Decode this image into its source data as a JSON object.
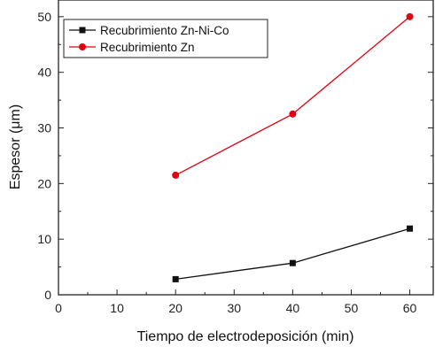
{
  "chart_data": {
    "type": "line",
    "title": "",
    "xlabel": "Tiempo de electrodeposición (min)",
    "ylabel": "Espesor (μm)",
    "xlim": [
      0,
      64
    ],
    "ylim": [
      0,
      53
    ],
    "xticks": [
      "0",
      "10",
      "20",
      "30",
      "40",
      "50",
      "60"
    ],
    "yticks": [
      "0",
      "10",
      "20",
      "30",
      "40",
      "50"
    ],
    "legend_position": "top-left",
    "grid": false,
    "series": [
      {
        "name": "Recubrimiento Zn-Ni-Co",
        "color": "#111111",
        "marker": "square",
        "x": [
          20,
          40,
          60
        ],
        "y": [
          2.8,
          5.7,
          11.9
        ]
      },
      {
        "name": "Recubrimiento Zn",
        "color": "#e3000f",
        "marker": "circle",
        "x": [
          20,
          40,
          60
        ],
        "y": [
          21.5,
          32.5,
          50.0
        ]
      }
    ]
  }
}
